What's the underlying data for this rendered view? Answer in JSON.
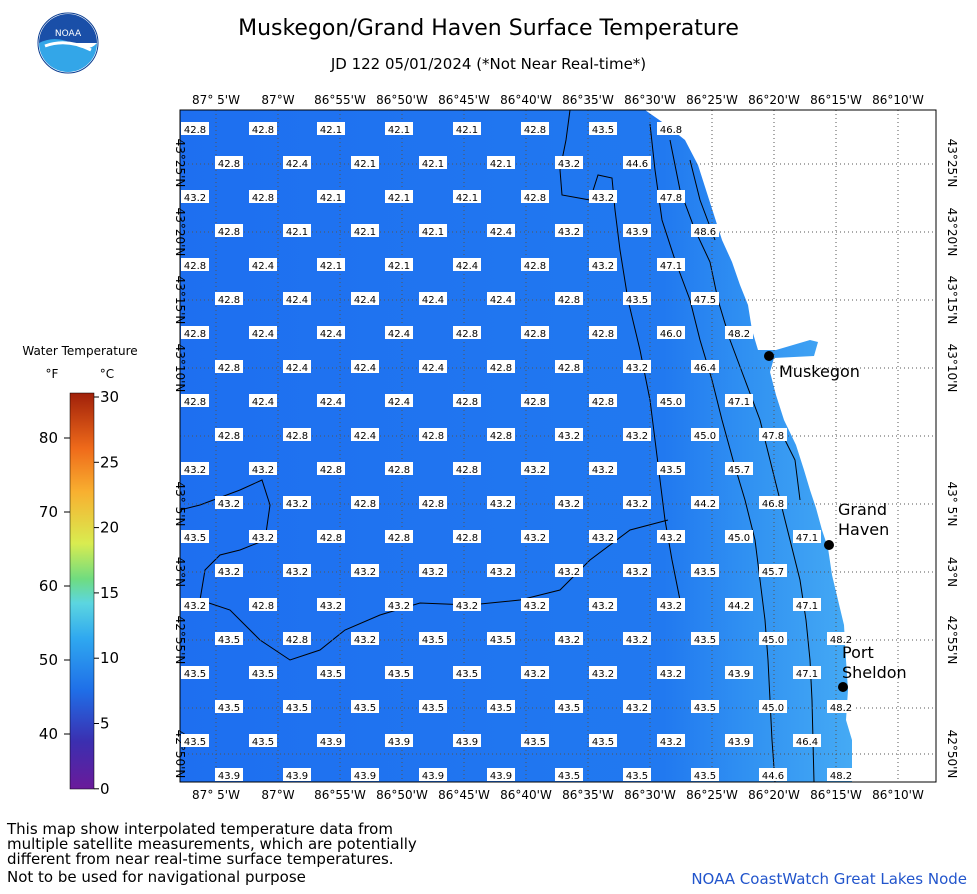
{
  "header": {
    "title": "Muskegon/Grand Haven Surface Temperature",
    "subtitle": "JD 122 05/01/2024 (*Not Near Real-time*)",
    "logo_text": "NOAA"
  },
  "map": {
    "lon_labels": [
      "87° 5'W",
      "87°W",
      "86°55'W",
      "86°50'W",
      "86°45'W",
      "86°40'W",
      "86°35'W",
      "86°30'W",
      "86°25'W",
      "86°20'W",
      "86°15'W",
      "86°10'W"
    ],
    "lat_labels": [
      "43°25'N",
      "43°20'N",
      "43°15'N",
      "43°10'N",
      "43° 5'N",
      "43°N",
      "42°55'N",
      "42°50'N"
    ],
    "cities": [
      {
        "name": "Muskegon",
        "lines": [
          "Muskegon"
        ]
      },
      {
        "name": "Grand Haven",
        "lines": [
          "Grand",
          "Haven"
        ]
      },
      {
        "name": "Port Sheldon",
        "lines": [
          "Port",
          "Sheldon"
        ]
      }
    ],
    "rows": [
      [
        "42.8",
        "42.8",
        "42.1",
        "42.1",
        "42.1",
        "42.8",
        "43.5",
        "46.8"
      ],
      [
        "42.8",
        "42.4",
        "42.1",
        "42.1",
        "42.1",
        "43.2",
        "44.6"
      ],
      [
        "43.2",
        "42.8",
        "42.1",
        "42.1",
        "42.1",
        "42.8",
        "43.2",
        "47.8"
      ],
      [
        "42.8",
        "42.1",
        "42.1",
        "42.1",
        "42.4",
        "43.2",
        "43.9",
        "48.6"
      ],
      [
        "42.8",
        "42.4",
        "42.1",
        "42.1",
        "42.4",
        "42.8",
        "43.2",
        "47.1"
      ],
      [
        "42.8",
        "42.4",
        "42.4",
        "42.4",
        "42.4",
        "42.8",
        "43.5",
        "47.5"
      ],
      [
        "42.8",
        "42.4",
        "42.4",
        "42.4",
        "42.8",
        "42.8",
        "42.8",
        "46.0",
        "48.2"
      ],
      [
        "42.8",
        "42.4",
        "42.4",
        "42.4",
        "42.8",
        "42.8",
        "43.2",
        "46.4"
      ],
      [
        "42.8",
        "42.4",
        "42.4",
        "42.4",
        "42.8",
        "42.8",
        "42.8",
        "45.0",
        "47.1"
      ],
      [
        "42.8",
        "42.8",
        "42.4",
        "42.8",
        "42.8",
        "43.2",
        "43.2",
        "45.0",
        "47.8"
      ],
      [
        "43.2",
        "43.2",
        "42.8",
        "42.8",
        "42.8",
        "43.2",
        "43.2",
        "43.5",
        "45.7"
      ],
      [
        "43.2",
        "43.2",
        "42.8",
        "42.8",
        "43.2",
        "43.2",
        "43.2",
        "44.2",
        "46.8"
      ],
      [
        "43.5",
        "43.2",
        "42.8",
        "42.8",
        "42.8",
        "43.2",
        "43.2",
        "43.2",
        "45.0",
        "47.1"
      ],
      [
        "43.2",
        "43.2",
        "43.2",
        "43.2",
        "43.2",
        "43.2",
        "43.2",
        "43.5",
        "45.7"
      ],
      [
        "43.2",
        "42.8",
        "43.2",
        "43.2",
        "43.2",
        "43.2",
        "43.2",
        "43.2",
        "44.2",
        "47.1"
      ],
      [
        "43.5",
        "42.8",
        "43.2",
        "43.5",
        "43.5",
        "43.2",
        "43.2",
        "43.5",
        "45.0",
        "48.2"
      ],
      [
        "43.5",
        "43.5",
        "43.5",
        "43.5",
        "43.5",
        "43.2",
        "43.2",
        "43.2",
        "43.9",
        "47.1"
      ],
      [
        "43.5",
        "43.5",
        "43.5",
        "43.5",
        "43.5",
        "43.5",
        "43.2",
        "43.5",
        "45.0",
        "48.2"
      ],
      [
        "43.5",
        "43.5",
        "43.9",
        "43.9",
        "43.9",
        "43.5",
        "43.5",
        "43.2",
        "43.9",
        "46.4"
      ],
      [
        "43.9",
        "43.9",
        "43.9",
        "43.9",
        "43.9",
        "43.5",
        "43.5",
        "43.5",
        "44.6",
        "48.2"
      ]
    ]
  },
  "legend": {
    "title": "Water Temperature",
    "unit_f": "°F",
    "unit_c": "°C",
    "f_ticks": [
      "80",
      "70",
      "60",
      "50",
      "40"
    ],
    "c_ticks": [
      "30",
      "25",
      "20",
      "15",
      "10",
      "5",
      "0"
    ]
  },
  "footer": {
    "note_lines": [
      "This map show interpolated temperature data from",
      "multiple satellite measurements, which are potentially",
      "different from near real-time surface temperatures."
    ],
    "nav_warning": "Not to be used for navigational purpose",
    "credit": "NOAA CoastWatch Great Lakes Node"
  },
  "colors": {
    "water_deep": "#1e6ff0",
    "water_warm": "#3fa4f3",
    "land": "#ffffff",
    "credit": "#2255cc"
  }
}
